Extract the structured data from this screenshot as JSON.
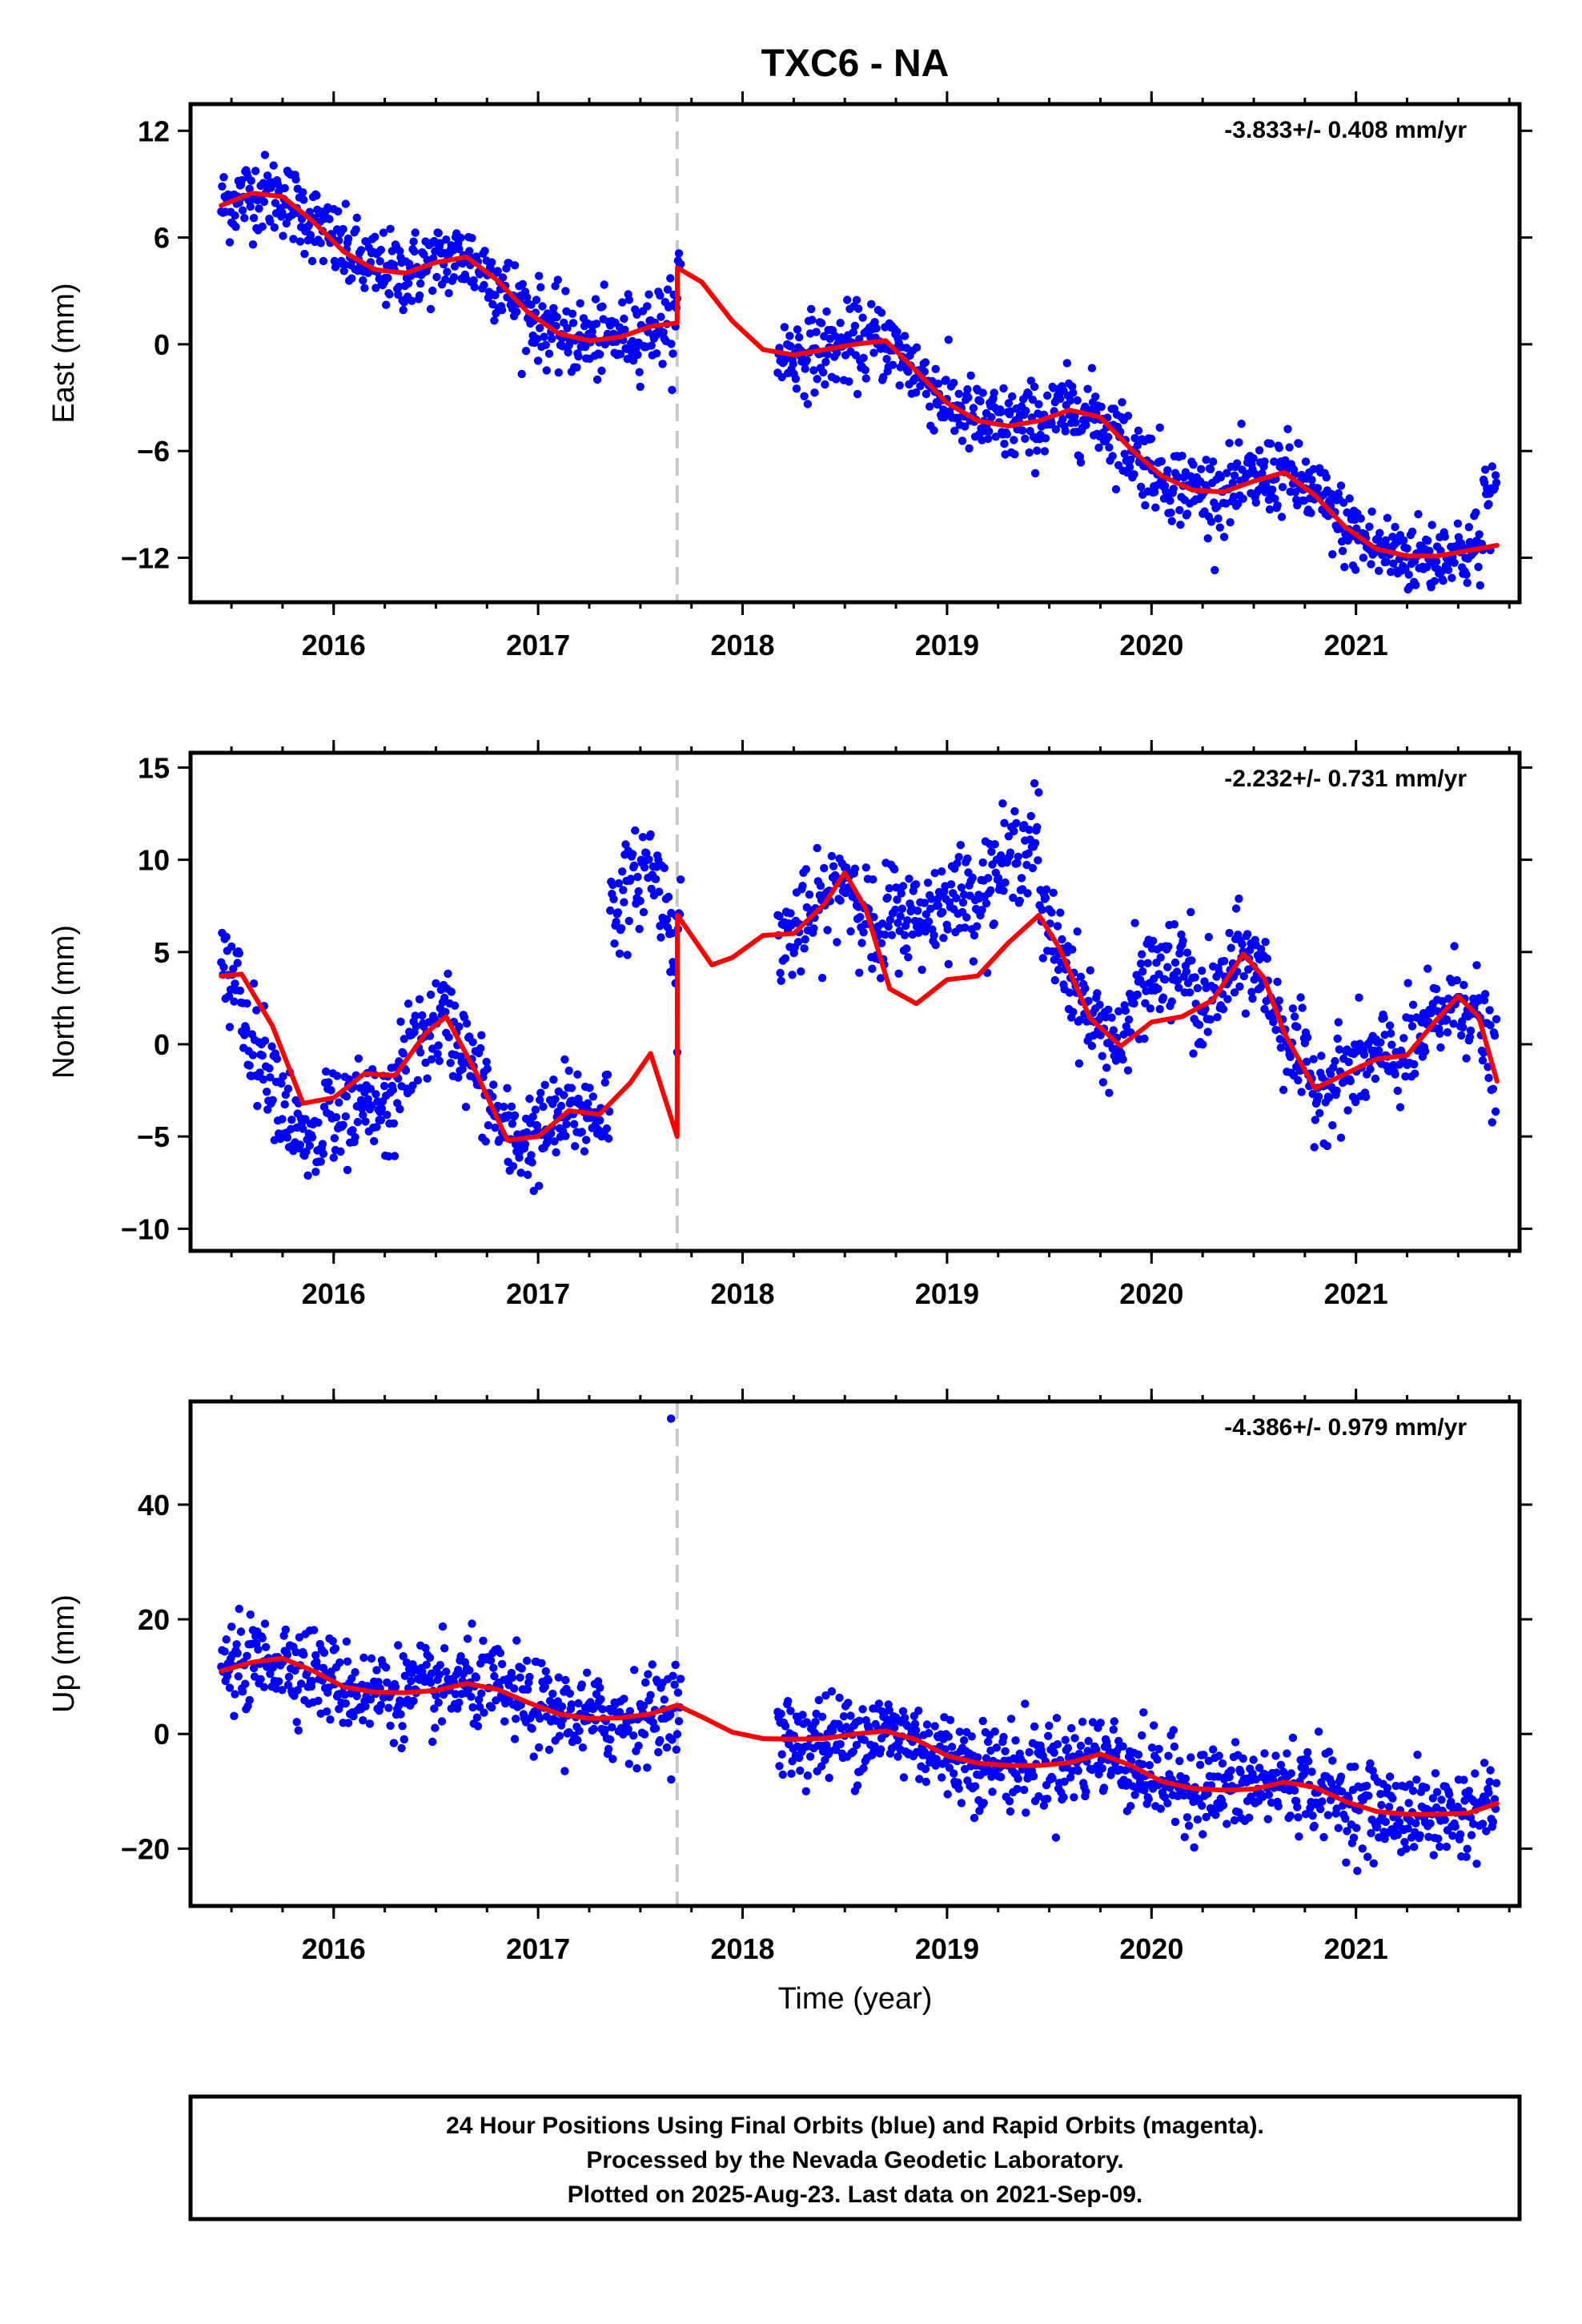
{
  "title": "TXC6 - NA",
  "caption": {
    "lines": [
      "24 Hour Positions Using Final Orbits (blue) and Rapid Orbits (magenta).",
      "Processed by the Nevada Geodetic Laboratory.",
      "Plotted on 2025-Aug-23. Last data on 2021-Sep-09."
    ]
  },
  "colors": {
    "points": "#0000ff",
    "model": "#ff0000",
    "offset_line": "#c8c8c8",
    "axes": "#000000"
  },
  "chart_data": [
    {
      "type": "scatter",
      "ylabel": "East (mm)",
      "xlabel": "",
      "rate_label": "-3.833+/- 0.408 mm/yr",
      "xlim": [
        2015.3,
        2021.8
      ],
      "ylim": [
        -14.5,
        13.5
      ],
      "x_ticks": [
        2016,
        2017,
        2018,
        2019,
        2020,
        2021
      ],
      "x_tick_labels": [
        "2016",
        "2017",
        "2018",
        "2019",
        "2020",
        "2021"
      ],
      "y_ticks": [
        -12,
        -6,
        0,
        6,
        12
      ],
      "y_tick_labels": [
        "−12",
        "−6",
        "0",
        "6",
        "12"
      ],
      "offset_epoch": 2017.68,
      "observation_gap": [
        2017.7,
        2018.17
      ],
      "model": {
        "x": [
          2015.45,
          2015.6,
          2015.75,
          2015.9,
          2016.05,
          2016.2,
          2016.35,
          2016.5,
          2016.65,
          2016.8,
          2016.95,
          2017.1,
          2017.25,
          2017.4,
          2017.55,
          2017.68,
          2017.681,
          2017.8,
          2017.95,
          2018.1,
          2018.25,
          2018.4,
          2018.55,
          2018.7,
          2018.85,
          2019.0,
          2019.15,
          2019.3,
          2019.45,
          2019.6,
          2019.75,
          2019.9,
          2020.05,
          2020.2,
          2020.35,
          2020.5,
          2020.65,
          2020.8,
          2020.95,
          2021.1,
          2021.25,
          2021.4,
          2021.55,
          2021.69
        ],
        "y": [
          7.8,
          8.5,
          8.3,
          6.9,
          5.2,
          4.2,
          4.0,
          4.6,
          4.9,
          3.6,
          1.8,
          0.6,
          0.2,
          0.4,
          1.0,
          1.2,
          4.3,
          3.5,
          1.3,
          -0.3,
          -0.6,
          -0.3,
          0.0,
          0.2,
          -1.5,
          -3.3,
          -4.3,
          -4.6,
          -4.3,
          -3.7,
          -4.1,
          -5.9,
          -7.4,
          -8.2,
          -8.3,
          -7.7,
          -7.2,
          -8.5,
          -10.3,
          -11.5,
          -11.9,
          -11.9,
          -11.6,
          -11.3
        ]
      }
    },
    {
      "type": "scatter",
      "ylabel": "North (mm)",
      "xlabel": "",
      "rate_label": "-2.232+/- 0.731 mm/yr",
      "xlim": [
        2015.3,
        2021.8
      ],
      "ylim": [
        -11.2,
        15.8
      ],
      "x_ticks": [
        2016,
        2017,
        2018,
        2019,
        2020,
        2021
      ],
      "x_tick_labels": [
        "2016",
        "2017",
        "2018",
        "2019",
        "2020",
        "2021"
      ],
      "y_ticks": [
        -10,
        -5,
        0,
        5,
        10,
        15
      ],
      "y_tick_labels": [
        "−10",
        "−5",
        "0",
        "5",
        "10",
        "15"
      ],
      "offset_epoch": 2017.68,
      "observation_gap": [
        2017.7,
        2018.17
      ],
      "model": {
        "x": [
          2015.45,
          2015.55,
          2015.7,
          2015.85,
          2016.0,
          2016.15,
          2016.3,
          2016.45,
          2016.55,
          2016.7,
          2016.85,
          2017.0,
          2017.15,
          2017.3,
          2017.45,
          2017.55,
          2017.68,
          2017.681,
          2017.75,
          2017.85,
          2017.95,
          2018.1,
          2018.25,
          2018.4,
          2018.5,
          2018.6,
          2018.72,
          2018.85,
          2019.0,
          2019.15,
          2019.3,
          2019.45,
          2019.55,
          2019.7,
          2019.85,
          2020.0,
          2020.15,
          2020.3,
          2020.45,
          2020.55,
          2020.65,
          2020.8,
          2020.95,
          2021.1,
          2021.25,
          2021.4,
          2021.5,
          2021.6,
          2021.69
        ],
        "y": [
          3.7,
          3.8,
          1.0,
          -3.2,
          -2.9,
          -1.6,
          -1.7,
          0.6,
          1.5,
          -1.6,
          -5.2,
          -5.0,
          -3.6,
          -3.8,
          -2.1,
          -0.5,
          -5.0,
          7.0,
          5.9,
          4.3,
          4.7,
          5.9,
          6.0,
          7.6,
          9.3,
          7.4,
          3.0,
          2.2,
          3.5,
          3.7,
          5.5,
          7.0,
          5.2,
          1.4,
          -0.1,
          1.2,
          1.5,
          2.4,
          4.9,
          3.6,
          0.6,
          -2.4,
          -1.6,
          -0.8,
          -0.6,
          1.4,
          2.6,
          1.5,
          -2.0
        ]
      }
    },
    {
      "type": "scatter",
      "ylabel": "Up (mm)",
      "xlabel": "Time (year)",
      "rate_label": "-4.386+/- 0.979 mm/yr",
      "xlim": [
        2015.3,
        2021.8
      ],
      "ylim": [
        -30,
        58
      ],
      "x_ticks": [
        2016,
        2017,
        2018,
        2019,
        2020,
        2021
      ],
      "x_tick_labels": [
        "2016",
        "2017",
        "2018",
        "2019",
        "2020",
        "2021"
      ],
      "y_ticks": [
        -20,
        0,
        20,
        40
      ],
      "y_tick_labels": [
        "−20",
        "0",
        "20",
        "40"
      ],
      "offset_epoch": 2017.68,
      "observation_gap": [
        2017.7,
        2018.17
      ],
      "model": {
        "x": [
          2015.45,
          2015.6,
          2015.75,
          2015.9,
          2016.05,
          2016.2,
          2016.35,
          2016.5,
          2016.65,
          2016.8,
          2016.95,
          2017.1,
          2017.25,
          2017.4,
          2017.55,
          2017.68,
          2017.8,
          2017.95,
          2018.1,
          2018.25,
          2018.4,
          2018.55,
          2018.7,
          2018.85,
          2019.0,
          2019.15,
          2019.3,
          2019.45,
          2019.6,
          2019.75,
          2019.9,
          2020.05,
          2020.2,
          2020.35,
          2020.5,
          2020.65,
          2020.8,
          2020.95,
          2021.1,
          2021.25,
          2021.4,
          2021.55,
          2021.69
        ],
        "y": [
          11.0,
          12.5,
          13.2,
          11.0,
          8.2,
          7.3,
          7.2,
          7.6,
          8.8,
          7.8,
          5.5,
          3.5,
          2.7,
          2.8,
          3.5,
          5.0,
          3.0,
          0.3,
          -0.8,
          -0.9,
          -0.8,
          0.0,
          0.5,
          -1.0,
          -3.8,
          -5.1,
          -5.5,
          -5.5,
          -5.0,
          -3.5,
          -5.5,
          -8.3,
          -9.5,
          -9.8,
          -9.6,
          -8.4,
          -9.3,
          -11.8,
          -13.5,
          -14.0,
          -14.0,
          -13.8,
          -12.1
        ]
      }
    }
  ]
}
